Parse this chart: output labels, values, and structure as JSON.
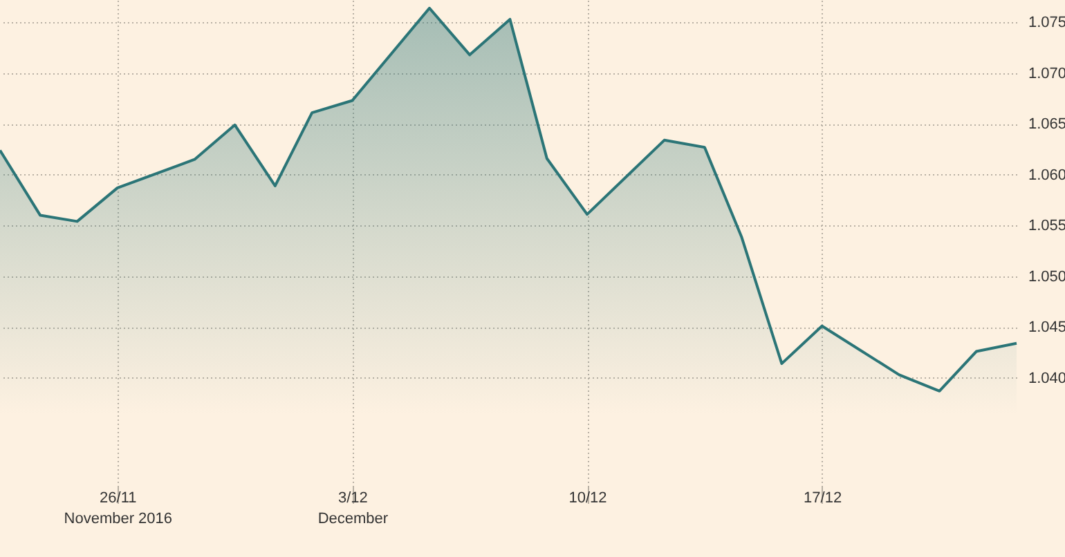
{
  "chart_data": {
    "type": "area",
    "x": [
      "2016-11-22T12:00",
      "2016-11-23T16:48",
      "2016-11-24T19:12",
      "2016-11-26",
      "2016-11-28T07:12",
      "2016-11-29T12:00",
      "2016-11-30T16:48",
      "2016-12-01T19:12",
      "2016-12-03",
      "2016-12-05T07:12",
      "2016-12-06T12:00",
      "2016-12-07T16:48",
      "2016-12-08T19:12",
      "2016-12-10",
      "2016-12-12T07:12",
      "2016-12-13T12:00",
      "2016-12-14T14:24",
      "2016-12-15T19:12",
      "2016-12-17",
      "2016-12-19T07:12",
      "2016-12-20T12:00",
      "2016-12-21T14:24",
      "2016-12-22T19:12"
    ],
    "series": [
      {
        "color": "#2b7577",
        "values": [
          1.0624,
          1.056,
          1.0554,
          1.0587,
          1.0615,
          1.0649,
          1.0589,
          1.0661,
          1.0673,
          1.0764,
          1.0718,
          1.0753,
          1.0616,
          1.0561,
          1.0634,
          1.0627,
          1.0539,
          1.0414,
          1.0451,
          1.0403,
          1.0387,
          1.0426,
          1.0434
        ]
      }
    ],
    "xlim": [
      "2016-11-22T12:00",
      "2016-12-22T19:12"
    ],
    "xticks": [
      {
        "value": "2016-11-26",
        "label": "26/11\nNovember 2016"
      },
      {
        "value": "2016-12-03",
        "label": "3/12\nDecember"
      },
      {
        "value": "2016-12-10",
        "label": "10/12"
      },
      {
        "value": "2016-12-17",
        "label": "17/12"
      }
    ],
    "ylim": [
      1.0293,
      1.0772
    ],
    "yticks": [
      {
        "value": 1.04,
        "label": "1.040"
      },
      {
        "value": 1.045,
        "label": "1.045"
      },
      {
        "value": 1.05,
        "label": "1.050"
      },
      {
        "value": 1.055,
        "label": "1.055"
      },
      {
        "value": 1.06,
        "label": "1.060"
      },
      {
        "value": 1.065,
        "label": "1.065"
      },
      {
        "value": 1.07,
        "label": "1.070"
      },
      {
        "value": 1.075,
        "label": "1.075"
      }
    ],
    "grid": true,
    "marker": "none",
    "line_style": "solid"
  }
}
